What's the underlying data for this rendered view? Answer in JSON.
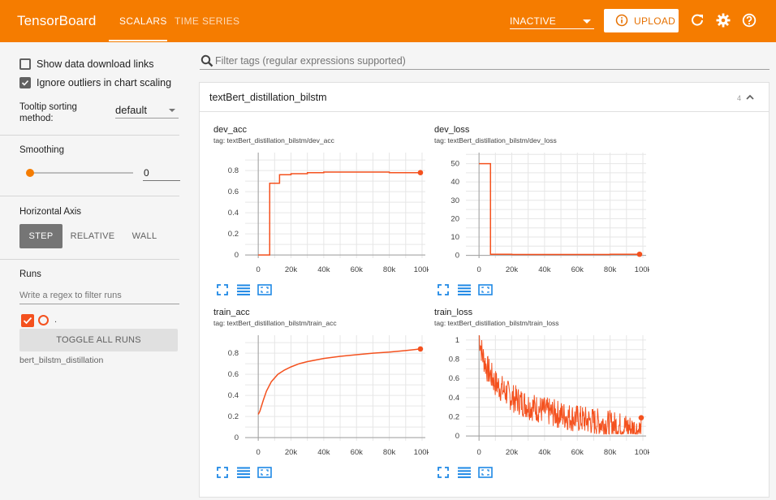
{
  "header": {
    "brand": "TensorBoard",
    "tabs": [
      {
        "label": "SCALARS"
      },
      {
        "label": "TIME SERIES"
      }
    ],
    "reload": "INACTIVE",
    "upload": "UPLOAD",
    "accent": "#f57c00"
  },
  "sidebar": {
    "show_download": "Show data download links",
    "ignore_outliers": "Ignore outliers in chart scaling",
    "tooltip_label": "Tooltip sorting method:",
    "tooltip_value": "default",
    "smoothing_label": "Smoothing",
    "smoothing_value": "0",
    "smoothing_fraction": 0,
    "axis_label": "Horizontal Axis",
    "axis_options": [
      "STEP",
      "RELATIVE",
      "WALL"
    ],
    "runs_label": "Runs",
    "runs_placeholder": "Write a regex to filter runs",
    "run_dot": ".",
    "toggle": "TOGGLE ALL RUNS",
    "run_name": "bert_bilstm_distillation"
  },
  "main": {
    "filter_placeholder": "Filter tags (regular expressions supported)",
    "group_title": "textBert_distillation_bilstm",
    "group_count": "4"
  },
  "series_color": "#f4511e",
  "chart_data": [
    {
      "type": "line",
      "title": "dev_acc",
      "tag": "tag: textBert_distillation_bilstm/dev_acc",
      "xlim": [
        -8000,
        102000
      ],
      "ylim": [
        -0.03,
        0.97
      ],
      "xticks": [
        0,
        20000,
        40000,
        60000,
        80000,
        100000
      ],
      "xtick_labels": [
        "0",
        "20k",
        "40k",
        "60k",
        "80k",
        "100k"
      ],
      "yticks": [
        0,
        0.2,
        0.4,
        0.6,
        0.8
      ],
      "ytick_labels": [
        "0",
        "0.2",
        "0.4",
        "0.6",
        "0.8"
      ],
      "step": true,
      "x": [
        0,
        7000,
        13000,
        20000,
        30000,
        40000,
        50000,
        60000,
        70000,
        80000,
        90000,
        99000
      ],
      "y": [
        0,
        0.68,
        0.76,
        0.77,
        0.78,
        0.785,
        0.785,
        0.785,
        0.785,
        0.78,
        0.78,
        0.78
      ]
    },
    {
      "type": "line",
      "title": "dev_loss",
      "tag": "tag: textBert_distillation_bilstm/dev_loss",
      "xlim": [
        -8000,
        102000
      ],
      "ylim": [
        -1.5,
        56
      ],
      "xticks": [
        0,
        20000,
        40000,
        60000,
        80000,
        100000
      ],
      "xtick_labels": [
        "0",
        "20k",
        "40k",
        "60k",
        "80k",
        "100k"
      ],
      "yticks": [
        0,
        10,
        20,
        30,
        40,
        50
      ],
      "ytick_labels": [
        "0",
        "10",
        "20",
        "30",
        "40",
        "50"
      ],
      "step": true,
      "x": [
        0,
        7000,
        20000,
        40000,
        60000,
        80000,
        98000
      ],
      "y": [
        50,
        0.6,
        0.5,
        0.5,
        0.5,
        0.6,
        0.6
      ]
    },
    {
      "type": "line",
      "title": "train_acc",
      "tag": "tag: textBert_distillation_bilstm/train_acc",
      "xlim": [
        -8000,
        102000
      ],
      "ylim": [
        -0.03,
        0.97
      ],
      "xticks": [
        0,
        20000,
        40000,
        60000,
        80000,
        100000
      ],
      "xtick_labels": [
        "0",
        "20k",
        "40k",
        "60k",
        "80k",
        "100k"
      ],
      "yticks": [
        0,
        0.2,
        0.4,
        0.6,
        0.8
      ],
      "ytick_labels": [
        "0",
        "0.2",
        "0.4",
        "0.6",
        "0.8"
      ],
      "step": false,
      "x": [
        0,
        1000,
        3000,
        5000,
        8000,
        12000,
        16000,
        20000,
        25000,
        30000,
        40000,
        50000,
        60000,
        70000,
        80000,
        90000,
        99000
      ],
      "y": [
        0.22,
        0.25,
        0.35,
        0.44,
        0.53,
        0.6,
        0.64,
        0.67,
        0.7,
        0.72,
        0.75,
        0.77,
        0.785,
        0.8,
        0.81,
        0.825,
        0.84
      ]
    },
    {
      "type": "line",
      "title": "train_loss",
      "tag": "tag: textBert_distillation_bilstm/train_loss",
      "xlim": [
        -8000,
        102000
      ],
      "ylim": [
        -0.05,
        1.05
      ],
      "xticks": [
        0,
        20000,
        40000,
        60000,
        80000,
        100000
      ],
      "xtick_labels": [
        "0",
        "20k",
        "40k",
        "60k",
        "80k",
        "100k"
      ],
      "yticks": [
        0,
        0.2,
        0.4,
        0.6,
        0.8,
        1
      ],
      "ytick_labels": [
        "0",
        "0.2",
        "0.4",
        "0.6",
        "0.8",
        "1"
      ],
      "step": false,
      "noisy": true,
      "x": [
        0,
        2000,
        5000,
        10000,
        20000,
        30000,
        40000,
        50000,
        60000,
        70000,
        80000,
        90000,
        99000
      ],
      "y": [
        1.05,
        0.85,
        0.7,
        0.55,
        0.4,
        0.32,
        0.26,
        0.22,
        0.18,
        0.15,
        0.12,
        0.09,
        0.05
      ]
    }
  ]
}
